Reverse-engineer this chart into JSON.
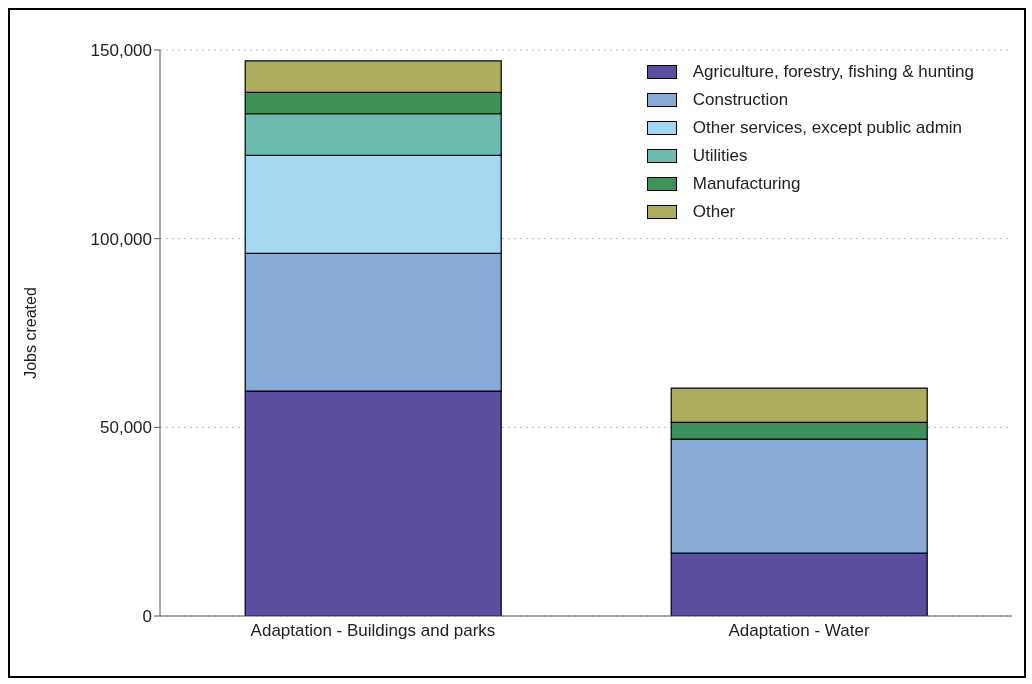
{
  "chart_data": {
    "type": "bar",
    "stacked": true,
    "ylabel": "Jobs created",
    "categories": [
      "Adaptation - Buildings and parks",
      "Adaptation - Water"
    ],
    "series": [
      {
        "name": "Agriculture, forestry, fishing & hunting",
        "color": "#5b4ea0",
        "values": [
          59600,
          16700
        ]
      },
      {
        "name": "Construction",
        "color": "#87abd6",
        "values": [
          36500,
          30200
        ]
      },
      {
        "name": "Other services, except public admin",
        "color": "#a4d8f2",
        "values": [
          26000,
          0
        ]
      },
      {
        "name": "Utilities",
        "color": "#6bbcae",
        "values": [
          11000,
          0
        ]
      },
      {
        "name": "Manufacturing",
        "color": "#3f915a",
        "values": [
          5700,
          4400
        ]
      },
      {
        "name": "Other",
        "color": "#adad5e",
        "values": [
          8300,
          9100
        ]
      }
    ],
    "ylim": [
      0,
      150000
    ],
    "yticks": [
      {
        "value": 0,
        "label": "0"
      },
      {
        "value": 50000,
        "label": "50,000"
      },
      {
        "value": 100000,
        "label": "100,000"
      },
      {
        "value": 150000,
        "label": "150,000"
      }
    ],
    "grid": "y",
    "legend": "top right"
  }
}
